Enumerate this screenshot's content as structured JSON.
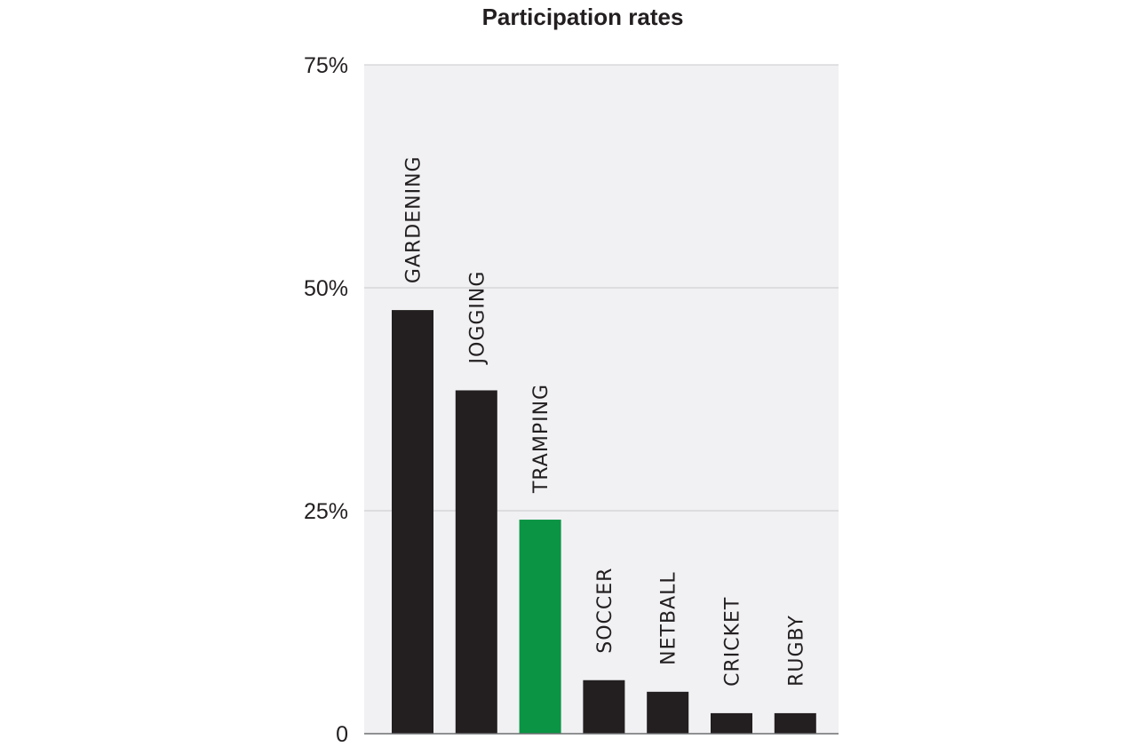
{
  "chart_data": {
    "type": "bar",
    "title": "Participation rates",
    "xlabel": "",
    "ylabel": "",
    "categories": [
      "GARDENING",
      "JOGGING",
      "TRAMPING",
      "SOCCER",
      "NETBALL",
      "CRICKET",
      "RUGBY"
    ],
    "values": [
      47.5,
      38.5,
      24,
      6,
      4.7,
      2.3,
      2.3
    ],
    "ylim": [
      0,
      75
    ],
    "y_ticks": [
      {
        "value": 0,
        "label": "0"
      },
      {
        "value": 25,
        "label": "25%"
      },
      {
        "value": 50,
        "label": "50%"
      },
      {
        "value": 75,
        "label": "75%"
      }
    ],
    "grid": true,
    "legend": "none",
    "category_labels_position": "above bars, rotated vertical",
    "colors": {
      "bar": "#231f20",
      "highlight": "#0a9444",
      "plot_background": "#f1f1f3",
      "grid": "#c9c9cc",
      "axis": "#6d6e71"
    },
    "highlight_category": "TRAMPING"
  }
}
